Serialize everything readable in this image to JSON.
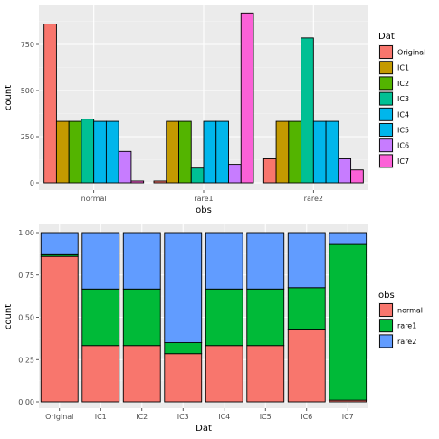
{
  "chart_data": [
    {
      "type": "bar",
      "layout": "grouped",
      "xlabel": "obs",
      "ylabel": "count",
      "ylim": [
        0,
        950
      ],
      "yticks": [
        0,
        250,
        500,
        750
      ],
      "grid": true,
      "legend_position": "right",
      "legend_title": "Dat",
      "categories": [
        "normal",
        "rare1",
        "rare2"
      ],
      "series": [
        {
          "name": "Original",
          "color": "#F8766D",
          "values": [
            860,
            10,
            130
          ]
        },
        {
          "name": "IC1",
          "color": "#C49A00",
          "values": [
            333,
            333,
            333
          ]
        },
        {
          "name": "IC2",
          "color": "#53B400",
          "values": [
            333,
            333,
            333
          ]
        },
        {
          "name": "IC3",
          "color": "#00C094",
          "values": [
            345,
            80,
            785
          ]
        },
        {
          "name": "IC4",
          "color": "#00B6EB",
          "values": [
            333,
            333,
            333
          ]
        },
        {
          "name": "IC5",
          "color": "#00B6EB",
          "values": [
            333,
            333,
            333
          ]
        },
        {
          "name": "IC6",
          "color": "#C77CFF",
          "values": [
            170,
            100,
            130
          ]
        },
        {
          "name": "IC7",
          "color": "#FB61D7",
          "values": [
            10,
            920,
            70
          ]
        }
      ]
    },
    {
      "type": "bar",
      "layout": "stacked-proportion",
      "xlabel": "Dat",
      "ylabel": "count",
      "ylim": [
        0,
        1
      ],
      "yticks": [
        "0.00",
        "0.25",
        "0.50",
        "0.75",
        "1.00"
      ],
      "grid": true,
      "legend_position": "right",
      "legend_title": "obs",
      "categories": [
        "Original",
        "IC1",
        "IC2",
        "IC3",
        "IC4",
        "IC5",
        "IC6",
        "IC7"
      ],
      "series": [
        {
          "name": "normal",
          "color": "#F8766D",
          "values": [
            0.86,
            0.333,
            0.333,
            0.285,
            0.333,
            0.333,
            0.425,
            0.01
          ]
        },
        {
          "name": "rare1",
          "color": "#00BA38",
          "values": [
            0.01,
            0.334,
            0.334,
            0.065,
            0.334,
            0.334,
            0.25,
            0.92
          ]
        },
        {
          "name": "rare2",
          "color": "#619CFF",
          "values": [
            0.13,
            0.333,
            0.333,
            0.65,
            0.333,
            0.333,
            0.325,
            0.07
          ]
        }
      ]
    }
  ]
}
